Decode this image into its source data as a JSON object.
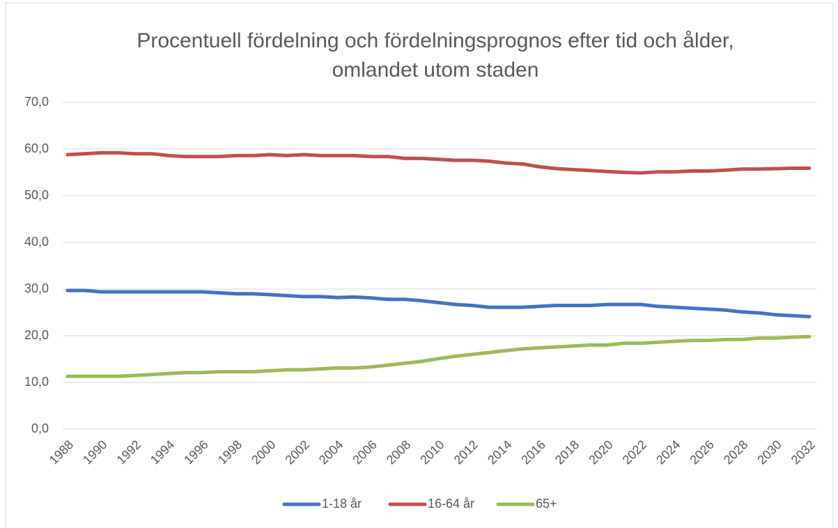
{
  "chart_data": {
    "type": "line",
    "title": "Procentuell fördelning och fördelningsprognos efter tid och ålder, omlandet utom staden",
    "categories": [
      "1988",
      null,
      "1990",
      null,
      "1992",
      null,
      "1994",
      null,
      "1996",
      null,
      "1998",
      null,
      "2000",
      null,
      "2002",
      null,
      "2004",
      null,
      "2006",
      null,
      "2008",
      null,
      "2010",
      null,
      "2012",
      null,
      "2014",
      null,
      "2016",
      null,
      "2018",
      null,
      "2020",
      null,
      "2022",
      null,
      "2024",
      null,
      "2026",
      null,
      "2028",
      null,
      "2030",
      null,
      "2032"
    ],
    "series": [
      {
        "name": "1-18 år",
        "color": "#4472c4",
        "values": [
          29.7,
          29.7,
          29.4,
          29.4,
          29.4,
          29.4,
          29.4,
          29.4,
          29.4,
          29.2,
          29.0,
          29.0,
          28.8,
          28.6,
          28.4,
          28.4,
          28.2,
          28.3,
          28.1,
          27.8,
          27.8,
          27.5,
          27.1,
          26.7,
          26.5,
          26.1,
          26.1,
          26.1,
          26.3,
          26.5,
          26.5,
          26.5,
          26.7,
          26.7,
          26.7,
          26.3,
          26.1,
          25.9,
          25.7,
          25.5,
          25.1,
          24.9,
          24.5,
          24.3,
          24.1
        ]
      },
      {
        "name": "16-64 år",
        "color": "#c0504d",
        "values": [
          58.8,
          59.0,
          59.2,
          59.2,
          59.0,
          59.0,
          58.6,
          58.4,
          58.4,
          58.4,
          58.6,
          58.6,
          58.8,
          58.6,
          58.8,
          58.6,
          58.6,
          58.6,
          58.4,
          58.4,
          58.0,
          58.0,
          57.8,
          57.6,
          57.6,
          57.4,
          57.0,
          56.8,
          56.2,
          55.8,
          55.6,
          55.4,
          55.2,
          55.0,
          54.9,
          55.1,
          55.1,
          55.3,
          55.3,
          55.5,
          55.7,
          55.7,
          55.8,
          55.9,
          55.9
        ]
      },
      {
        "name": "65+",
        "color": "#9bbb59",
        "values": [
          11.3,
          11.3,
          11.3,
          11.3,
          11.5,
          11.7,
          11.9,
          12.1,
          12.1,
          12.3,
          12.3,
          12.3,
          12.5,
          12.7,
          12.7,
          12.9,
          13.1,
          13.1,
          13.3,
          13.7,
          14.1,
          14.5,
          15.1,
          15.6,
          16.0,
          16.4,
          16.8,
          17.2,
          17.4,
          17.6,
          17.8,
          18.0,
          18.0,
          18.4,
          18.4,
          18.6,
          18.8,
          19.0,
          19.0,
          19.2,
          19.2,
          19.5,
          19.5,
          19.7,
          19.8
        ]
      }
    ],
    "ylim": [
      0,
      70
    ],
    "yticks": [
      {
        "value": 0,
        "label": "0,0"
      },
      {
        "value": 10,
        "label": "10,0"
      },
      {
        "value": 20,
        "label": "20,0"
      },
      {
        "value": 30,
        "label": "30,0"
      },
      {
        "value": 40,
        "label": "40,0"
      },
      {
        "value": 50,
        "label": "50,0"
      },
      {
        "value": 60,
        "label": "60,0"
      },
      {
        "value": 70,
        "label": "70,0"
      }
    ],
    "grid": true,
    "legend": "bottom"
  }
}
